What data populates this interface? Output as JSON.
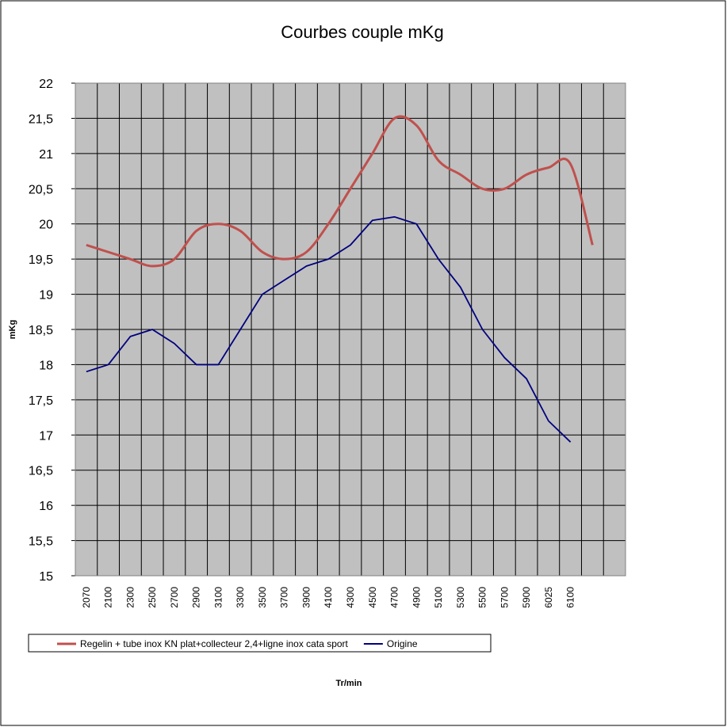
{
  "chart_data": {
    "type": "line",
    "title": "Courbes couple mKg",
    "y_label": "mKg",
    "x_label": "Tr/min",
    "categories": [
      "2070",
      "2100",
      "2300",
      "2500",
      "2700",
      "2900",
      "3100",
      "3300",
      "3500",
      "3700",
      "3900",
      "4100",
      "4300",
      "4500",
      "4700",
      "4900",
      "5100",
      "5300",
      "5500",
      "5700",
      "5900",
      "6025",
      "6100",
      null,
      null
    ],
    "series": [
      {
        "name": "Regelin + tube inox KN plat+collecteur 2,4+ligne inox cata sport",
        "color": "#c0504d",
        "smooth": true,
        "values": [
          19.7,
          19.6,
          19.5,
          19.4,
          19.5,
          19.9,
          20.0,
          19.9,
          19.6,
          19.5,
          19.6,
          20.0,
          20.5,
          21.0,
          21.5,
          21.4,
          20.9,
          20.7,
          20.5,
          20.5,
          20.7,
          20.8,
          20.85,
          19.7,
          null
        ]
      },
      {
        "name": "Origine",
        "color": "#000080",
        "smooth": false,
        "values": [
          17.9,
          18.0,
          18.4,
          18.5,
          18.3,
          18.0,
          18.0,
          18.5,
          19.0,
          19.2,
          19.4,
          19.5,
          19.7,
          20.05,
          20.1,
          20.0,
          19.5,
          19.1,
          18.5,
          18.1,
          17.8,
          17.2,
          16.9,
          null,
          null
        ]
      }
    ],
    "ylim": [
      15,
      22
    ],
    "yticks": [
      15,
      {
        "value": 15.5,
        "label": "15,5"
      },
      16,
      {
        "value": 16.5,
        "label": "16,5"
      },
      17,
      {
        "value": 17.5,
        "label": "17,5"
      },
      18,
      {
        "value": 18.5,
        "label": "18,5"
      },
      19,
      {
        "value": 19.5,
        "label": "19,5"
      },
      20,
      {
        "value": 20.5,
        "label": "20,5"
      },
      21,
      {
        "value": 21.5,
        "label": "21,5"
      },
      22
    ],
    "grid": true,
    "plot_background": "#c0c0c0",
    "legend": "bottom"
  }
}
